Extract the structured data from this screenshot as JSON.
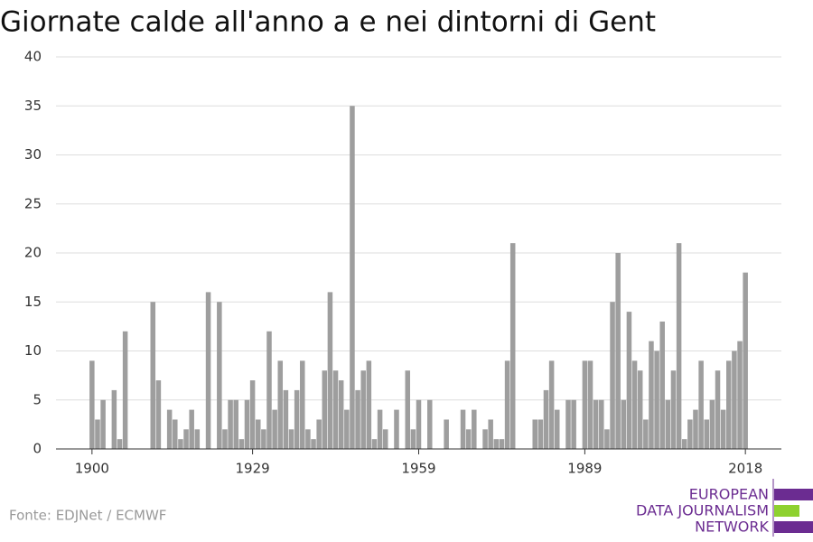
{
  "chart_data": {
    "type": "bar",
    "title": "Giornate calde all'anno a e nei dintorni di Gent",
    "source": "Fonte: EDJNet / ECMWF",
    "logo": [
      "EUROPEAN",
      "DATA JOURNALISM",
      "NETWORK"
    ],
    "x": [
      1900,
      1901,
      1902,
      1903,
      1904,
      1905,
      1906,
      1907,
      1908,
      1909,
      1910,
      1911,
      1912,
      1913,
      1914,
      1915,
      1916,
      1917,
      1918,
      1919,
      1920,
      1921,
      1922,
      1923,
      1924,
      1925,
      1926,
      1927,
      1928,
      1929,
      1930,
      1931,
      1932,
      1933,
      1934,
      1935,
      1936,
      1937,
      1938,
      1939,
      1940,
      1941,
      1942,
      1943,
      1944,
      1945,
      1946,
      1947,
      1948,
      1949,
      1950,
      1951,
      1952,
      1953,
      1954,
      1955,
      1956,
      1957,
      1958,
      1959,
      1960,
      1961,
      1962,
      1963,
      1964,
      1965,
      1966,
      1967,
      1968,
      1969,
      1970,
      1971,
      1972,
      1973,
      1974,
      1975,
      1976,
      1977,
      1978,
      1979,
      1980,
      1981,
      1982,
      1983,
      1984,
      1985,
      1986,
      1987,
      1988,
      1989,
      1990,
      1991,
      1992,
      1993,
      1994,
      1995,
      1996,
      1997,
      1998,
      1999,
      2000,
      2001,
      2002,
      2003,
      2004,
      2005,
      2006,
      2007,
      2008,
      2009,
      2010,
      2011,
      2012,
      2013,
      2014,
      2015,
      2016,
      2017,
      2018
    ],
    "values": [
      9,
      3,
      5,
      0,
      6,
      1,
      12,
      0,
      0,
      0,
      0,
      15,
      7,
      0,
      4,
      3,
      1,
      2,
      4,
      2,
      0,
      16,
      0,
      15,
      2,
      5,
      5,
      1,
      5,
      7,
      3,
      2,
      12,
      4,
      9,
      6,
      2,
      6,
      9,
      2,
      1,
      3,
      8,
      16,
      8,
      7,
      4,
      35,
      6,
      8,
      9,
      1,
      4,
      2,
      0,
      4,
      0,
      8,
      2,
      5,
      0,
      5,
      0,
      0,
      3,
      0,
      0,
      4,
      2,
      4,
      0,
      2,
      3,
      1,
      1,
      9,
      21,
      0,
      0,
      0,
      3,
      3,
      6,
      9,
      4,
      0,
      5,
      5,
      0,
      9,
      9,
      5,
      5,
      2,
      15,
      20,
      5,
      14,
      9,
      8,
      3,
      11,
      10,
      13,
      5,
      8,
      21,
      1,
      3,
      4,
      9,
      3,
      5,
      8,
      4,
      9,
      10,
      11,
      18
    ],
    "color": "#9e9e9e",
    "xlim": [
      1893.5,
      2024.5
    ],
    "xticks": [
      1900,
      1929,
      1959,
      1989,
      2018
    ],
    "ylim": [
      0,
      40
    ],
    "yticks": [
      0,
      5,
      10,
      15,
      20,
      25,
      30,
      35,
      40
    ],
    "grid": true
  }
}
